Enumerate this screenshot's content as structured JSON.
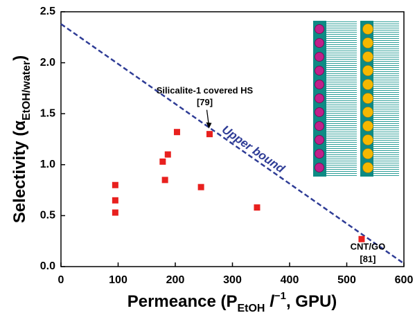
{
  "chart_data": {
    "type": "scatter",
    "x_label": [
      "Permeance (P",
      "EtOH",
      " l",
      "−1",
      ", GPU)"
    ],
    "y_label": [
      "Selectivity (α",
      "EtOH/water",
      ")"
    ],
    "xlim": [
      0,
      600
    ],
    "ylim": [
      0,
      2.5
    ],
    "xticks": [
      0,
      100,
      200,
      300,
      400,
      500,
      600
    ],
    "yticks": [
      {
        "value": 0,
        "label": "0.0"
      },
      0.5,
      {
        "value": 1,
        "label": "1.0"
      },
      1.5,
      {
        "value": 2,
        "label": "2.0"
      },
      2.5
    ],
    "series": [
      {
        "color": "#e8201e",
        "x": [
          95,
          95,
          95,
          178,
          182,
          187,
          203,
          260,
          245,
          343,
          526
        ],
        "values": [
          0.8,
          0.65,
          0.53,
          1.03,
          0.85,
          1.1,
          1.32,
          1.3,
          0.78,
          0.58,
          0.27
        ]
      }
    ],
    "bound_line": {
      "name": "Upper bound",
      "color": "#2e3c96",
      "x": [
        0,
        600
      ],
      "values": [
        2.38,
        0.03
      ]
    },
    "annotations": [
      {
        "lines": [
          "Silicalite-1 covered HS",
          "[79]"
        ],
        "x": 260,
        "y": 1.3
      },
      {
        "lines": [
          "CNT/GO",
          "[81]"
        ],
        "x": 526,
        "y": 0.27
      }
    ]
  }
}
